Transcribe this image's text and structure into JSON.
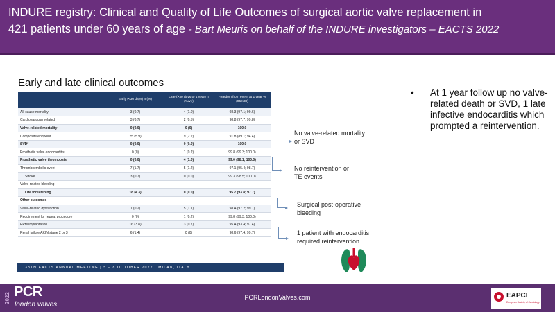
{
  "header": {
    "line1": "INDURE registry: Clinical and Quality of Life Outcomes of surgical aortic valve replacement in",
    "line2": "421 patients under 60 years of age",
    "subtitle": "- Bart Meuris on behalf of the INDURE investigators – EACTS 2022"
  },
  "slide": {
    "title": "Early and late clinical outcomes",
    "columns": [
      "",
      "Early (<30 days) n (%)",
      "Late (>30 days to 1 year) n (%/vy)",
      "Freedom from event at 1 year % (95%CI)"
    ],
    "rows": [
      {
        "label": "All-cause mortality",
        "early": "3 (0.7)",
        "late": "4 (1.0)",
        "freedom": "98.3 (97.1; 99.6)",
        "bold": false,
        "indent": false
      },
      {
        "label": "Cardiovascular related",
        "early": "3 (0.7)",
        "late": "2 (0.5)",
        "freedom": "98.8 (97.7; 99.8)",
        "bold": false,
        "indent": false
      },
      {
        "label": "Valve-related mortality",
        "early": "0 (0.0)",
        "late": "0 (0)",
        "freedom": "100.0",
        "bold": true,
        "indent": false
      },
      {
        "label": "Composite endpoint",
        "early": "25 (5.9)",
        "late": "9 (2.2)",
        "freedom": "91.8 (89.1; 94.4)",
        "bold": false,
        "indent": false
      },
      {
        "label": "SVD*",
        "early": "0 (0.0)",
        "late": "0 (0.0)",
        "freedom": "100.0",
        "bold": true,
        "indent": false
      },
      {
        "label": "Prosthetic valve endocarditis",
        "early": "0 (0)",
        "late": "1 (0.2)",
        "freedom": "99.8 (99.3; 100.0)",
        "bold": false,
        "indent": false
      },
      {
        "label": "Prosthetic valve thrombosis",
        "early": "0 (0.0)",
        "late": "4 (1.0)",
        "freedom": "99.0 (98.1; 100.0)",
        "bold": true,
        "indent": false
      },
      {
        "label": "Thromboembolic event",
        "early": "7 (1.7)",
        "late": "5 (1.2)",
        "freedom": "97.1 (95.4; 98.7)",
        "bold": false,
        "indent": false
      },
      {
        "label": "Stroke",
        "early": "3 (0.7)",
        "late": "0 (0.0)",
        "freedom": "99.3 (98.5; 100.0)",
        "bold": false,
        "indent": true
      },
      {
        "label": "Valve-related bleeding",
        "early": "",
        "late": "",
        "freedom": "",
        "bold": false,
        "indent": false
      },
      {
        "label": "Life threatening",
        "early": "18 (4.3)",
        "late": "0 (0.0)",
        "freedom": "95.7 (93.8; 97.7)",
        "bold": true,
        "indent": true
      },
      {
        "label": "Other outcomes",
        "early": "",
        "late": "",
        "freedom": "",
        "bold": true,
        "indent": false
      },
      {
        "label": "Valve-related dysfunction",
        "early": "1 (0.2)",
        "late": "5 (1.1)",
        "freedom": "98.4 (97.2; 99.7)",
        "bold": false,
        "indent": false
      },
      {
        "label": "Requirement for repeat procedure",
        "early": "0 (0)",
        "late": "1 (0.2)",
        "freedom": "99.8 (99.3; 100.0)",
        "bold": false,
        "indent": false
      },
      {
        "label": "PPM implantation",
        "early": "16 (3.8)",
        "late": "3 (0.7)",
        "freedom": "95.4 (93.4; 97.4)",
        "bold": false,
        "indent": false
      },
      {
        "label": "Renal failure AKIN stage 2 or 3",
        "early": "6 (1.4)",
        "late": "0 (0)",
        "freedom": "98.6 (97.4; 99.7)",
        "bold": false,
        "indent": false
      }
    ],
    "congress": "38TH EACTS ANNUAL MEETING | 5 – 8 OCTOBER 2022 | MILAN, ITALY"
  },
  "notes": [
    {
      "line1": "No valve-related mortality",
      "line2": "or SVD"
    },
    {
      "line1": "No reintervention or",
      "line2": "TE events"
    },
    {
      "line1": "Surgical post-operative",
      "line2": "bleeding"
    },
    {
      "line1": "1 patient with endocarditis",
      "line2": "required reintervention"
    }
  ],
  "bullet": {
    "symbol": "•",
    "text": "At 1 year follow up no valve-related death or SVD, 1 late infective endocarditis which prompted a reintervention."
  },
  "footer": {
    "logo_year": "2022",
    "logo_main": "PCR",
    "logo_sub": "london valves",
    "url": "PCRLondonValves.com",
    "partner_logo": "EAPCI",
    "partner_sub": "European Society of Cardiology"
  },
  "colors": {
    "header_bg": "#6a2f7d",
    "table_header": "#1f3e6a",
    "footer_bg": "#5b2f70",
    "bracket": "#6f8fb8"
  }
}
